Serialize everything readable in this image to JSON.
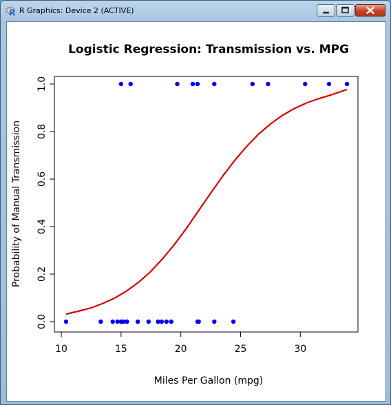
{
  "window": {
    "title": "R Graphics: Device 2 (ACTIVE)",
    "icon": "r-logo-icon",
    "controls": [
      "minimize-icon",
      "maximize-icon",
      "close-icon"
    ]
  },
  "chart_data": {
    "type": "scatter",
    "title": "Logistic Regression: Transmission vs. MPG",
    "xlabel": "Miles Per Gallon (mpg)",
    "ylabel": "Probability of Manual Transmission",
    "xlim": [
      10.4,
      33.9
    ],
    "ylim": [
      0,
      1
    ],
    "x_ticks": [
      10,
      15,
      20,
      25,
      30
    ],
    "x_tick_labels": [
      "10",
      "15",
      "20",
      "25",
      "30"
    ],
    "y_ticks": [
      0,
      0.2,
      0.4,
      0.6,
      0.8,
      1
    ],
    "y_tick_labels": [
      "0.0",
      "0.2",
      "0.4",
      "0.6",
      "0.8",
      "1.0"
    ],
    "grid": false,
    "series": [
      {
        "kind": "points",
        "color": "#0000ff",
        "x": [
          10.4,
          13.3,
          14.3,
          14.7,
          15.0,
          15.2,
          15.5,
          16.4,
          17.3,
          18.1,
          18.4,
          18.8,
          19.2,
          21.4,
          21.5,
          22.8,
          24.4,
          15.0,
          15.8,
          19.7,
          21.0,
          21.4,
          22.8,
          26.0,
          27.3,
          30.4,
          32.4,
          33.9
        ],
        "y": [
          0,
          0,
          0,
          0,
          0,
          0,
          0,
          0,
          0,
          0,
          0,
          0,
          0,
          0,
          0,
          0,
          0,
          1,
          1,
          1,
          1,
          1,
          1,
          1,
          1,
          1,
          1,
          1
        ]
      },
      {
        "kind": "line",
        "color": "#d40000",
        "x": [
          10.4,
          11.5,
          12.5,
          13.5,
          14.5,
          15.5,
          16.5,
          17.5,
          18.5,
          19.5,
          20.5,
          21.5,
          22.5,
          23.5,
          24.5,
          25.5,
          26.5,
          27.5,
          28.5,
          29.5,
          30.5,
          31.5,
          32.5,
          33.9
        ],
        "y": [
          0.032,
          0.045,
          0.058,
          0.077,
          0.1,
          0.13,
          0.167,
          0.212,
          0.266,
          0.327,
          0.395,
          0.468,
          0.541,
          0.612,
          0.678,
          0.737,
          0.789,
          0.832,
          0.868,
          0.897,
          0.92,
          0.938,
          0.953,
          0.977
        ]
      }
    ]
  }
}
